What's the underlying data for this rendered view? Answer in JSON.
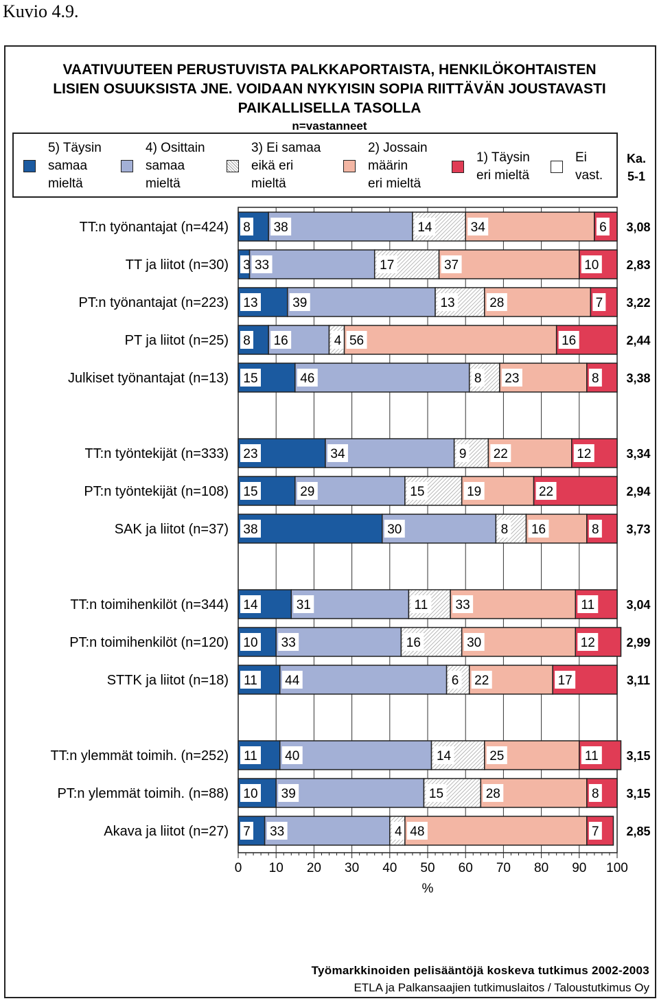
{
  "caption": "Kuvio 4.9.",
  "title_lines": [
    "VAATIVUUTEEN PERUSTUVISTA PALKKAPORTAISTA, HENKILÖKOHTAISTEN",
    "LISIEN OSUUKSISTA JNE. VOIDAAN NYKYISIN SOPIA RIITTÄVÄN JOUSTAVASTI",
    "PAIKALLISELLA TASOLLA"
  ],
  "subtitle": "n=vastanneet",
  "legend": [
    {
      "label": "5) Täysin\nsamaa\nmieltä",
      "color": "#1b5aa0"
    },
    {
      "label": "4) Osittain\nsamaa\nmieltä",
      "color": "#a3b0d6"
    },
    {
      "label": "3) Ei samaa\neikä eri\nmieltä",
      "color": "hatch"
    },
    {
      "label": "2) Jossain\nmäärin\neri mieltä",
      "color": "#f3b6a4"
    },
    {
      "label": "1) Täysin\neri mieltä",
      "color": "#e03c55"
    },
    {
      "label": "Ei\nvast.",
      "color": "#ffffff"
    }
  ],
  "ka_label": "Ka.\n5-1",
  "footer_line1": "Työmarkkinoiden pelisääntöjä koskeva tutkimus 2002-2003",
  "footer_line2": "ETLA ja Palkansaajien tutkimuslaitos / Taloustutkimus Oy",
  "chart_data": {
    "type": "bar",
    "orientation": "horizontal-stacked-percent",
    "xlabel": "%",
    "xlim": [
      0,
      100
    ],
    "xticks": [
      0,
      10,
      20,
      30,
      40,
      50,
      60,
      70,
      80,
      90,
      100
    ],
    "categories": [
      "TT:n työnantajat (n=424)",
      "TT ja liitot (n=30)",
      "PT:n työnantajat (n=223)",
      "PT ja liitot (n=25)",
      "Julkiset työnantajat (n=13)",
      "TT:n työntekijät (n=333)",
      "PT:n työntekijät (n=108)",
      "SAK ja liitot (n=37)",
      "TT:n toimihenkilöt (n=344)",
      "PT:n toimihenkilöt (n=120)",
      "STTK ja liitot (n=18)",
      "TT:n ylemmät toimih. (n=252)",
      "PT:n ylemmät toimih. (n=88)",
      "Akava ja liitot (n=27)"
    ],
    "groups": [
      [
        0,
        1,
        2,
        3,
        4
      ],
      [
        5,
        6,
        7
      ],
      [
        8,
        9,
        10
      ],
      [
        11,
        12,
        13
      ]
    ],
    "series": [
      {
        "name": "5) Täysin samaa mieltä",
        "values": [
          8,
          3,
          13,
          8,
          15,
          23,
          15,
          38,
          14,
          10,
          11,
          11,
          10,
          7
        ]
      },
      {
        "name": "4) Osittain samaa mieltä",
        "values": [
          38,
          33,
          39,
          16,
          46,
          34,
          29,
          30,
          31,
          33,
          44,
          40,
          39,
          33
        ]
      },
      {
        "name": "3) Ei samaa eikä eri mieltä",
        "values": [
          14,
          17,
          13,
          4,
          8,
          9,
          15,
          8,
          11,
          16,
          6,
          14,
          15,
          4
        ]
      },
      {
        "name": "2) Jossain määrin eri mieltä",
        "values": [
          34,
          37,
          28,
          56,
          23,
          22,
          19,
          16,
          33,
          30,
          22,
          25,
          28,
          48
        ]
      },
      {
        "name": "1) Täysin eri mieltä",
        "values": [
          6,
          10,
          7,
          16,
          8,
          12,
          22,
          8,
          11,
          12,
          17,
          11,
          8,
          7
        ]
      }
    ],
    "averages": [
      "3,08",
      "2,83",
      "3,22",
      "2,44",
      "3,38",
      "3,34",
      "2,94",
      "3,73",
      "3,04",
      "2,99",
      "3,11",
      "3,15",
      "3,15",
      "2,85"
    ],
    "colors": [
      "#1b5aa0",
      "#a3b0d6",
      "hatch",
      "#f3b6a4",
      "#e03c55"
    ],
    "grid": true
  }
}
